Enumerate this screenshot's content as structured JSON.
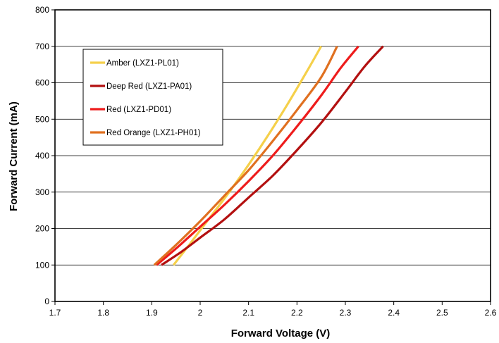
{
  "chart_data": {
    "type": "line",
    "xlabel": "Forward Voltage (V)",
    "ylabel": "Forward Current (mA)",
    "xlim": [
      1.7,
      2.6
    ],
    "ylim": [
      0,
      800
    ],
    "xticks": [
      "1.7",
      "1.8",
      "1.9",
      "2",
      "2.1",
      "2.2",
      "2.3",
      "2.4",
      "2.5",
      "2.6"
    ],
    "yticks": [
      "0",
      "100",
      "200",
      "300",
      "400",
      "500",
      "600",
      "700",
      "800"
    ],
    "grid": "horizontal",
    "legend_position": "upper-left inside plot",
    "series": [
      {
        "name": "Amber (LXZ1-PL01)",
        "color": "#F5D04A",
        "x": [
          1.945,
          1.98,
          2.02,
          2.06,
          2.1,
          2.14,
          2.18,
          2.22,
          2.25
        ],
        "y": [
          100,
          160,
          230,
          300,
          375,
          455,
          540,
          630,
          700
        ]
      },
      {
        "name": "Deep Red (LXZ1-PA01)",
        "color": "#B31010",
        "x": [
          1.92,
          1.96,
          2.0,
          2.05,
          2.1,
          2.15,
          2.2,
          2.25,
          2.3,
          2.34,
          2.378
        ],
        "y": [
          100,
          135,
          175,
          225,
          285,
          345,
          415,
          490,
          575,
          645,
          700
        ]
      },
      {
        "name": "Red (LXZ1-PD01)",
        "color": "#EE1C1C",
        "x": [
          1.91,
          1.95,
          2.0,
          2.05,
          2.1,
          2.15,
          2.2,
          2.25,
          2.29,
          2.327
        ],
        "y": [
          100,
          145,
          205,
          265,
          330,
          400,
          480,
          565,
          640,
          700
        ]
      },
      {
        "name": "Red Orange (LXZ1-PH01)",
        "color": "#E07020",
        "x": [
          1.905,
          1.95,
          2.0,
          2.05,
          2.1,
          2.15,
          2.2,
          2.25,
          2.283
        ],
        "y": [
          100,
          155,
          220,
          290,
          360,
          440,
          525,
          615,
          700
        ]
      }
    ]
  }
}
